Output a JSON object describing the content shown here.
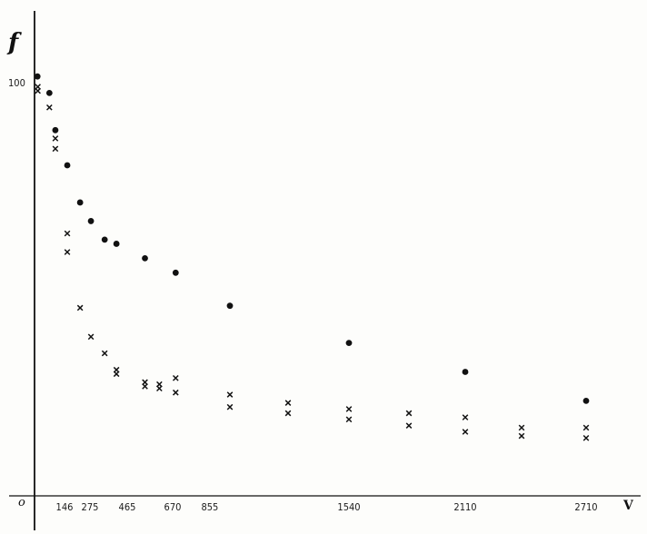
{
  "chart_data": {
    "type": "scatter",
    "title": "",
    "xlabel": "V",
    "ylabel": "f",
    "origin_label": "o",
    "xlim": [
      0,
      2950
    ],
    "ylim": [
      0,
      106
    ],
    "x_ticks": [
      {
        "value": 146,
        "label": "146"
      },
      {
        "value": 275,
        "label": "275"
      },
      {
        "value": 465,
        "label": "465"
      },
      {
        "value": 670,
        "label": "670"
      },
      {
        "value": 855,
        "label": "855"
      },
      {
        "value": 1540,
        "label": "1540"
      },
      {
        "value": 2110,
        "label": "2110"
      },
      {
        "value": 2710,
        "label": "2710"
      }
    ],
    "y_ticks": [
      {
        "value": 100,
        "label": "100"
      }
    ],
    "series": [
      {
        "marker": "dot",
        "color": "#111111",
        "points": [
          [
            10,
            101.5
          ],
          [
            70,
            97.5
          ],
          [
            100,
            88.5
          ],
          [
            160,
            80
          ],
          [
            225,
            71
          ],
          [
            280,
            66.5
          ],
          [
            350,
            62
          ],
          [
            410,
            61
          ],
          [
            545,
            57.5
          ],
          [
            685,
            54
          ],
          [
            955,
            46
          ],
          [
            1540,
            37
          ],
          [
            2110,
            30
          ],
          [
            2710,
            23
          ]
        ]
      },
      {
        "marker": "cross",
        "color": "#111111",
        "points": [
          [
            12,
            99
          ],
          [
            12,
            98
          ],
          [
            70,
            94
          ],
          [
            100,
            86.5
          ],
          [
            100,
            84
          ],
          [
            160,
            63.5
          ],
          [
            160,
            59
          ],
          [
            225,
            45.5
          ],
          [
            280,
            38.5
          ],
          [
            350,
            34.5
          ],
          [
            410,
            30.5
          ],
          [
            410,
            29.5
          ],
          [
            545,
            27.5
          ],
          [
            545,
            26.5
          ],
          [
            610,
            27
          ],
          [
            610,
            26
          ],
          [
            685,
            28.5
          ],
          [
            685,
            25
          ],
          [
            955,
            24.5
          ],
          [
            955,
            21.5
          ],
          [
            1240,
            22.5
          ],
          [
            1240,
            20
          ],
          [
            1540,
            21
          ],
          [
            1540,
            18.5
          ],
          [
            1830,
            20
          ],
          [
            1830,
            17
          ],
          [
            2110,
            19
          ],
          [
            2110,
            15.5
          ],
          [
            2420,
            16.5
          ],
          [
            2420,
            14.5
          ],
          [
            2710,
            16.5
          ],
          [
            2710,
            14
          ]
        ]
      }
    ],
    "grid": false,
    "legend": "none"
  }
}
